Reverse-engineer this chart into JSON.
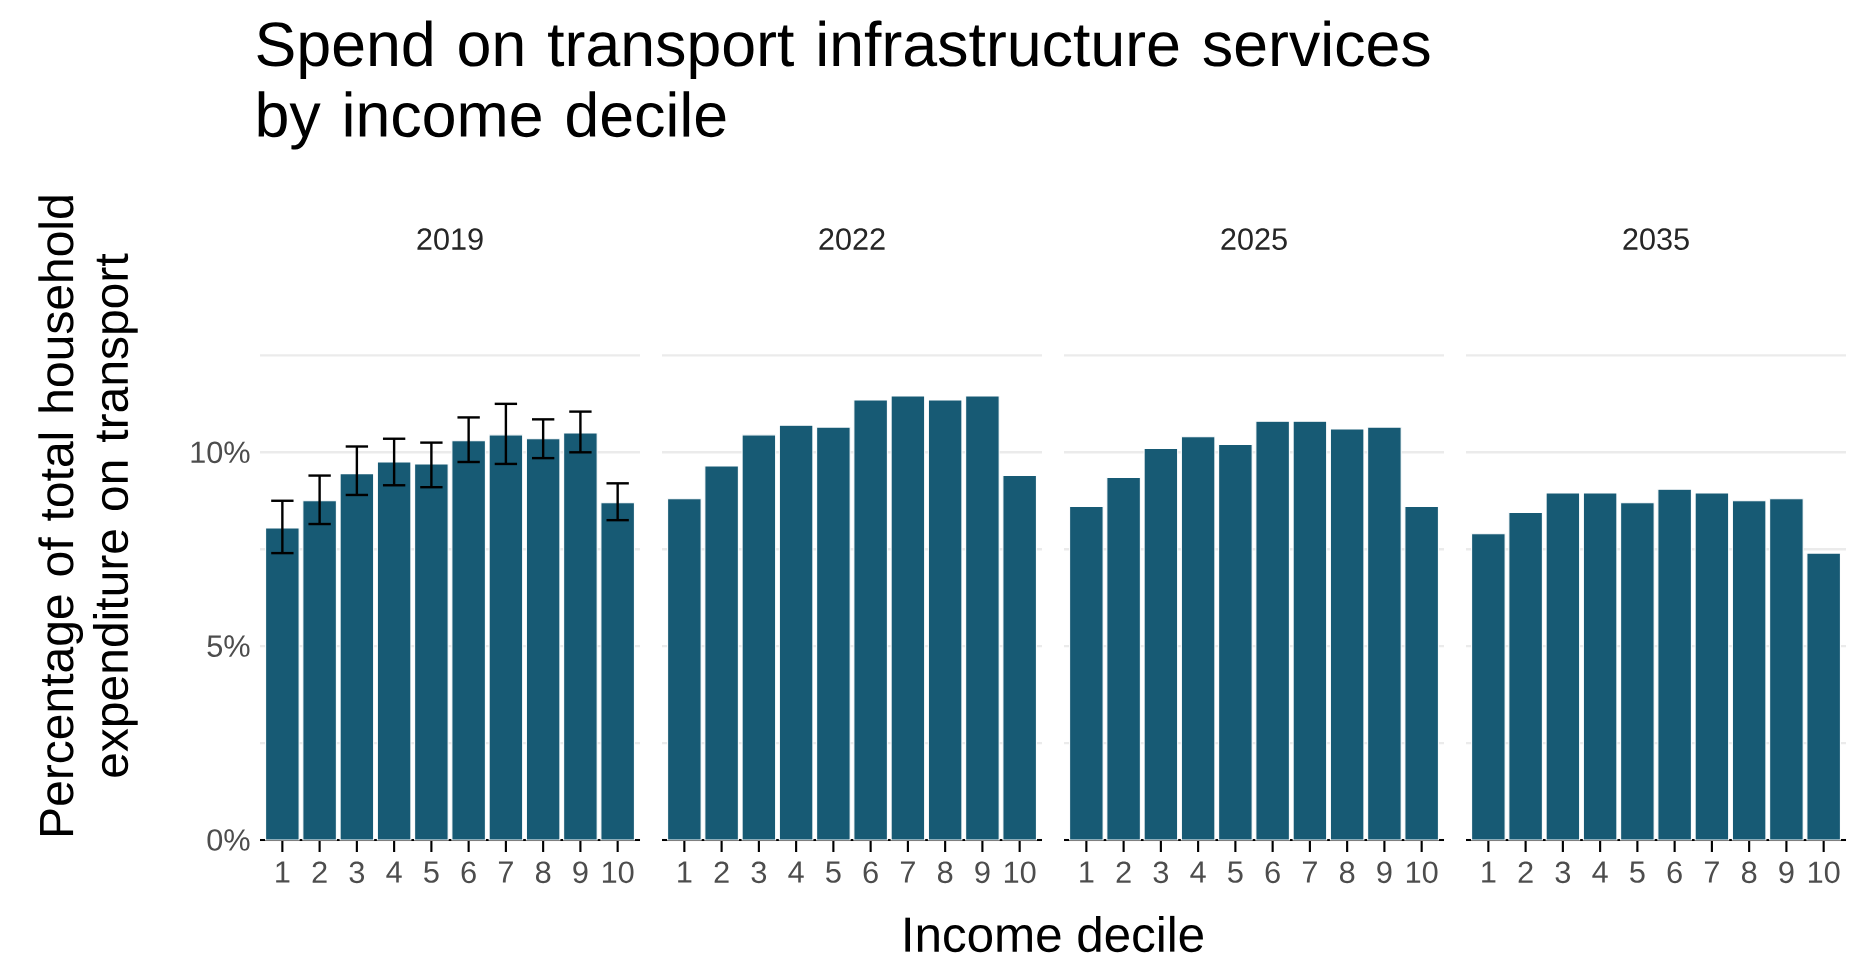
{
  "chart_data": [
    {
      "type": "bar",
      "title": "Spend on transport infrastructure services by income decile",
      "subtitle": "2019",
      "xlabel": "Income decile",
      "ylabel": "Percentage of total household expenditure on transport",
      "categories": [
        "1",
        "2",
        "3",
        "4",
        "5",
        "6",
        "7",
        "8",
        "9",
        "10"
      ],
      "color": "#175a74",
      "values": [
        8.05,
        8.75,
        9.45,
        9.75,
        9.7,
        10.3,
        10.45,
        10.35,
        10.5,
        8.7
      ],
      "errors": [
        [
          7.4,
          8.75
        ],
        [
          8.15,
          9.4
        ],
        [
          8.9,
          10.15
        ],
        [
          9.15,
          10.35
        ],
        [
          9.1,
          10.25
        ],
        [
          9.75,
          10.9
        ],
        [
          9.7,
          11.25
        ],
        [
          9.85,
          10.85
        ],
        [
          10.0,
          11.05
        ],
        [
          8.25,
          9.2
        ]
      ],
      "ylim": [
        0,
        12.5
      ],
      "yticks": [
        {
          "value": 0,
          "label": "0%"
        },
        {
          "value": 2.5,
          "label": null
        },
        {
          "value": 5,
          "label": "5%"
        },
        {
          "value": 7.5,
          "label": null
        },
        {
          "value": 10,
          "label": "10%"
        },
        {
          "value": 12.5,
          "label": null
        }
      ],
      "grid": "y"
    },
    {
      "type": "bar",
      "subtitle": "2022",
      "categories": [
        "1",
        "2",
        "3",
        "4",
        "5",
        "6",
        "7",
        "8",
        "9",
        "10"
      ],
      "color": "#175a74",
      "values": [
        8.8,
        9.65,
        10.45,
        10.7,
        10.65,
        11.35,
        11.45,
        11.35,
        11.45,
        9.4
      ],
      "ylim": [
        0,
        12.5
      ],
      "yticks": [
        0,
        2.5,
        5,
        7.5,
        10,
        12.5
      ],
      "grid": "y",
      "tick_labels": "x"
    },
    {
      "type": "bar",
      "subtitle": "2025",
      "categories": [
        "1",
        "2",
        "3",
        "4",
        "5",
        "6",
        "7",
        "8",
        "9",
        "10"
      ],
      "color": "#175a74",
      "values": [
        8.6,
        9.35,
        10.1,
        10.4,
        10.2,
        10.8,
        10.8,
        10.6,
        10.65,
        8.6
      ],
      "ylim": [
        0,
        12.5
      ],
      "yticks": [
        0,
        2.5,
        5,
        7.5,
        10,
        12.5
      ],
      "grid": "y",
      "tick_labels": "x"
    },
    {
      "type": "bar",
      "subtitle": "2035",
      "categories": [
        "1",
        "2",
        "3",
        "4",
        "5",
        "6",
        "7",
        "8",
        "9",
        "10"
      ],
      "color": "#175a74",
      "values": [
        7.9,
        8.45,
        8.95,
        8.95,
        8.7,
        9.05,
        8.95,
        8.75,
        8.8,
        7.4
      ],
      "ylim": [
        0,
        12.5
      ],
      "yticks": [
        0,
        2.5,
        5,
        7.5,
        10,
        12.5
      ],
      "grid": "y",
      "tick_labels": "x"
    }
  ]
}
